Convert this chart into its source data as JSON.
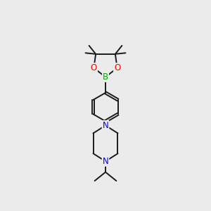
{
  "background_color": "#ebebeb",
  "bond_color": "#1a1a1a",
  "atom_colors": {
    "B": "#00aa00",
    "O": "#ff0000",
    "N": "#0000ee",
    "C": "#1a1a1a"
  },
  "lw": 1.4,
  "figsize": [
    3.0,
    3.0
  ],
  "dpi": 100,
  "xlim": [
    0,
    10
  ],
  "ylim": [
    0,
    13.5
  ]
}
